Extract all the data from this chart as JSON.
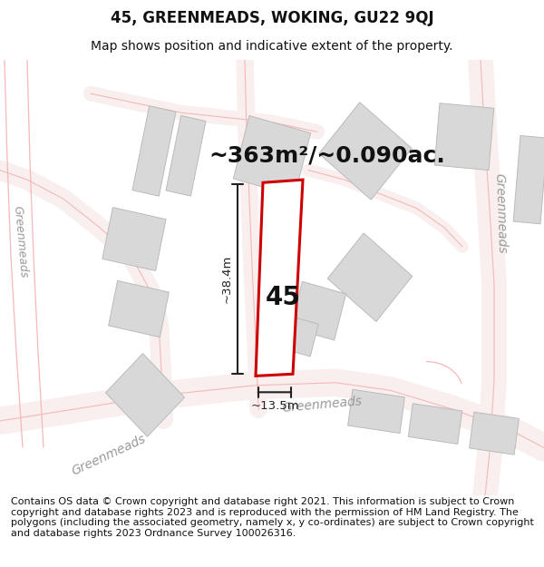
{
  "title": "45, GREENMEADS, WOKING, GU22 9QJ",
  "subtitle": "Map shows position and indicative extent of the property.",
  "footer": "Contains OS data © Crown copyright and database right 2021. This information is subject to Crown copyright and database rights 2023 and is reproduced with the permission of HM Land Registry. The polygons (including the associated geometry, namely x, y co-ordinates) are subject to Crown copyright and database rights 2023 Ordnance Survey 100026316.",
  "area_label": "~363m²/~0.090ac.",
  "property_number": "45",
  "dim_height": "~38.4m",
  "dim_width": "~13.5m",
  "map_bg": "#ffffff",
  "road_line_color": "#f5b8b8",
  "road_fill_color": "#fce8e8",
  "building_fill": "#d8d8d8",
  "building_edge": "#c0c0c0",
  "property_fill": "#ffffff",
  "property_edge": "#cc0000",
  "property_lw": 2.2,
  "dim_color": "#222222",
  "road_label_color": "#999999",
  "title_fontsize": 12,
  "subtitle_fontsize": 10,
  "footer_fontsize": 8,
  "area_fontsize": 18,
  "number_fontsize": 20,
  "road_label_fontsize": 10
}
